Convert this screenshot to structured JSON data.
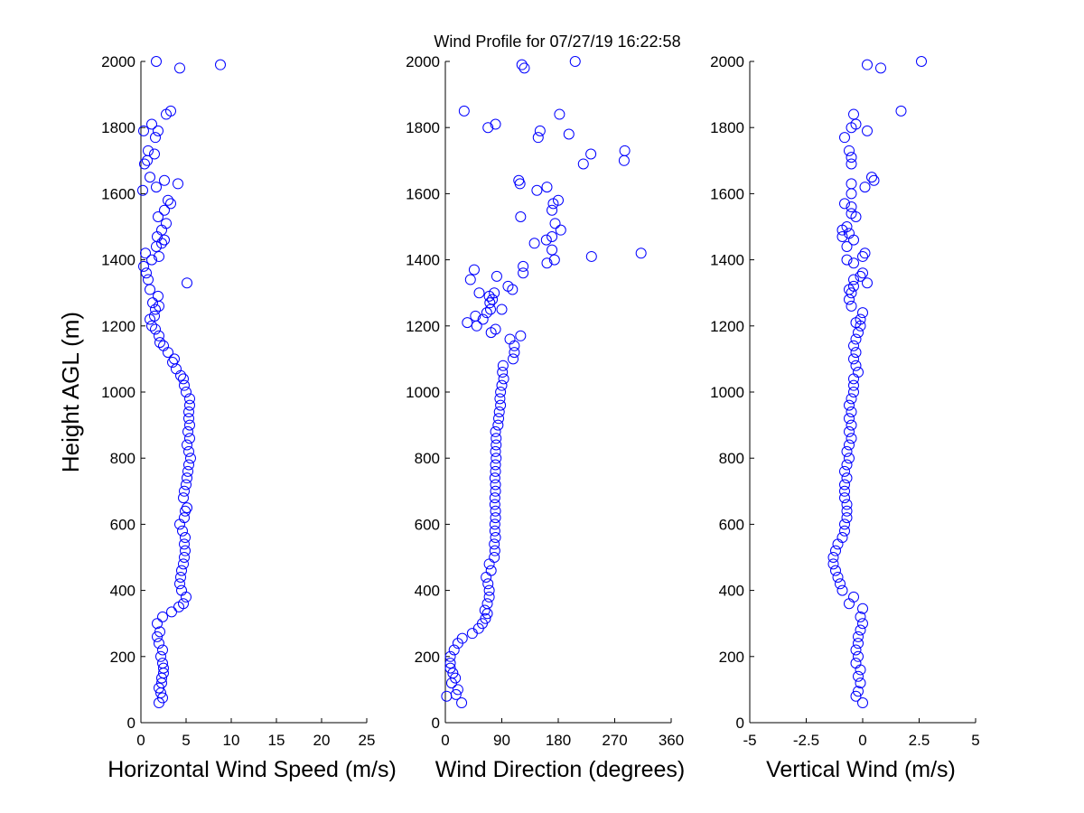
{
  "figure_title": "Wind Profile for  07/27/19 16:22:58",
  "marker_color": "#0000ff",
  "chart_data": [
    {
      "type": "scatter",
      "xlabel": "Horizontal Wind Speed (m/s)",
      "ylabel": "Height AGL (m)",
      "xlim": [
        0,
        25
      ],
      "ylim": [
        0,
        2000
      ],
      "xticks": [
        "0",
        "5",
        "10",
        "15",
        "20",
        "25"
      ],
      "yticks": [
        "0",
        "200",
        "400",
        "600",
        "800",
        "1000",
        "1200",
        "1400",
        "1600",
        "1800",
        "2000"
      ],
      "grid": false,
      "points": [
        [
          2.0,
          60
        ],
        [
          2.4,
          75
        ],
        [
          2.2,
          90
        ],
        [
          2.0,
          105
        ],
        [
          2.3,
          120
        ],
        [
          2.3,
          135
        ],
        [
          2.5,
          150
        ],
        [
          2.5,
          165
        ],
        [
          2.4,
          180
        ],
        [
          2.2,
          200
        ],
        [
          2.4,
          220
        ],
        [
          2.0,
          240
        ],
        [
          1.8,
          260
        ],
        [
          2.1,
          275
        ],
        [
          1.8,
          300
        ],
        [
          2.4,
          320
        ],
        [
          3.4,
          335
        ],
        [
          4.2,
          350
        ],
        [
          4.7,
          360
        ],
        [
          5.0,
          380
        ],
        [
          4.5,
          400
        ],
        [
          4.3,
          420
        ],
        [
          4.4,
          440
        ],
        [
          4.5,
          460
        ],
        [
          4.7,
          480
        ],
        [
          4.8,
          500
        ],
        [
          4.9,
          520
        ],
        [
          4.8,
          540
        ],
        [
          4.9,
          560
        ],
        [
          4.6,
          580
        ],
        [
          4.3,
          600
        ],
        [
          4.8,
          620
        ],
        [
          4.9,
          640
        ],
        [
          5.1,
          650
        ],
        [
          4.7,
          680
        ],
        [
          4.8,
          700
        ],
        [
          5.0,
          720
        ],
        [
          5.1,
          740
        ],
        [
          5.2,
          760
        ],
        [
          5.3,
          780
        ],
        [
          5.5,
          800
        ],
        [
          5.3,
          820
        ],
        [
          5.1,
          840
        ],
        [
          5.4,
          860
        ],
        [
          5.2,
          880
        ],
        [
          5.4,
          900
        ],
        [
          5.3,
          920
        ],
        [
          5.3,
          940
        ],
        [
          5.4,
          960
        ],
        [
          5.4,
          980
        ],
        [
          5.0,
          1000
        ],
        [
          4.8,
          1020
        ],
        [
          4.7,
          1040
        ],
        [
          4.4,
          1050
        ],
        [
          3.9,
          1070
        ],
        [
          3.5,
          1090
        ],
        [
          3.7,
          1100
        ],
        [
          3.0,
          1120
        ],
        [
          2.5,
          1140
        ],
        [
          2.1,
          1150
        ],
        [
          2.0,
          1170
        ],
        [
          1.6,
          1190
        ],
        [
          1.2,
          1200
        ],
        [
          1.0,
          1220
        ],
        [
          1.5,
          1230
        ],
        [
          1.6,
          1250
        ],
        [
          2.0,
          1260
        ],
        [
          1.3,
          1270
        ],
        [
          1.9,
          1290
        ],
        [
          1.0,
          1310
        ],
        [
          5.1,
          1330
        ],
        [
          0.8,
          1340
        ],
        [
          0.6,
          1360
        ],
        [
          0.3,
          1380
        ],
        [
          1.2,
          1400
        ],
        [
          2.0,
          1410
        ],
        [
          0.5,
          1420
        ],
        [
          1.7,
          1440
        ],
        [
          2.3,
          1450
        ],
        [
          2.6,
          1460
        ],
        [
          1.8,
          1470
        ],
        [
          2.3,
          1490
        ],
        [
          2.8,
          1510
        ],
        [
          1.9,
          1530
        ],
        [
          2.6,
          1550
        ],
        [
          3.3,
          1570
        ],
        [
          3.0,
          1580
        ],
        [
          0.2,
          1610
        ],
        [
          1.7,
          1620
        ],
        [
          4.1,
          1630
        ],
        [
          2.6,
          1640
        ],
        [
          1.0,
          1650
        ],
        [
          0.4,
          1690
        ],
        [
          0.7,
          1700
        ],
        [
          1.5,
          1720
        ],
        [
          0.8,
          1730
        ],
        [
          1.6,
          1770
        ],
        [
          0.3,
          1790
        ],
        [
          1.9,
          1790
        ],
        [
          1.2,
          1810
        ],
        [
          2.8,
          1840
        ],
        [
          3.3,
          1850
        ],
        [
          4.3,
          1980
        ],
        [
          1.7,
          2000
        ],
        [
          8.8,
          1990
        ]
      ]
    },
    {
      "type": "scatter",
      "xlabel": "Wind Direction (degrees)",
      "ylabel": "",
      "xlim": [
        0,
        360
      ],
      "ylim": [
        0,
        2000
      ],
      "xticks": [
        "0",
        "90",
        "180",
        "270",
        "360"
      ],
      "yticks": [
        "0",
        "200",
        "400",
        "600",
        "800",
        "1000",
        "1200",
        "1400",
        "1600",
        "1800",
        "2000"
      ],
      "grid": false,
      "points": [
        [
          26,
          60
        ],
        [
          2,
          80
        ],
        [
          17,
          85
        ],
        [
          20,
          100
        ],
        [
          10,
          120
        ],
        [
          16,
          135
        ],
        [
          12,
          150
        ],
        [
          8,
          165
        ],
        [
          8,
          180
        ],
        [
          8,
          200
        ],
        [
          14,
          220
        ],
        [
          20,
          240
        ],
        [
          27,
          255
        ],
        [
          43,
          270
        ],
        [
          53,
          285
        ],
        [
          59,
          300
        ],
        [
          64,
          315
        ],
        [
          67,
          330
        ],
        [
          63,
          340
        ],
        [
          67,
          360
        ],
        [
          70,
          380
        ],
        [
          70,
          400
        ],
        [
          68,
          420
        ],
        [
          65,
          440
        ],
        [
          73,
          460
        ],
        [
          70,
          480
        ],
        [
          78,
          500
        ],
        [
          79,
          520
        ],
        [
          78,
          540
        ],
        [
          80,
          560
        ],
        [
          79,
          580
        ],
        [
          79,
          600
        ],
        [
          80,
          620
        ],
        [
          80,
          640
        ],
        [
          79,
          660
        ],
        [
          79,
          680
        ],
        [
          80,
          700
        ],
        [
          80,
          720
        ],
        [
          79,
          740
        ],
        [
          80,
          760
        ],
        [
          80,
          780
        ],
        [
          81,
          800
        ],
        [
          80,
          820
        ],
        [
          81,
          840
        ],
        [
          81,
          860
        ],
        [
          80,
          880
        ],
        [
          84,
          900
        ],
        [
          85,
          920
        ],
        [
          86,
          940
        ],
        [
          88,
          960
        ],
        [
          87,
          980
        ],
        [
          88,
          1000
        ],
        [
          90,
          1020
        ],
        [
          93,
          1040
        ],
        [
          91,
          1060
        ],
        [
          92,
          1080
        ],
        [
          108,
          1100
        ],
        [
          110,
          1120
        ],
        [
          110,
          1140
        ],
        [
          103,
          1160
        ],
        [
          120,
          1170
        ],
        [
          73,
          1180
        ],
        [
          80,
          1190
        ],
        [
          35,
          1210
        ],
        [
          50,
          1200
        ],
        [
          60,
          1220
        ],
        [
          48,
          1230
        ],
        [
          66,
          1240
        ],
        [
          72,
          1250
        ],
        [
          90,
          1250
        ],
        [
          71,
          1270
        ],
        [
          75,
          1280
        ],
        [
          70,
          1290
        ],
        [
          78,
          1300
        ],
        [
          54,
          1300
        ],
        [
          107,
          1310
        ],
        [
          100,
          1320
        ],
        [
          40,
          1340
        ],
        [
          82,
          1350
        ],
        [
          46,
          1370
        ],
        [
          124,
          1360
        ],
        [
          124,
          1380
        ],
        [
          162,
          1390
        ],
        [
          174,
          1400
        ],
        [
          233,
          1410
        ],
        [
          312,
          1420
        ],
        [
          170,
          1430
        ],
        [
          142,
          1450
        ],
        [
          161,
          1460
        ],
        [
          170,
          1470
        ],
        [
          184,
          1490
        ],
        [
          175,
          1510
        ],
        [
          120,
          1530
        ],
        [
          170,
          1550
        ],
        [
          172,
          1570
        ],
        [
          180,
          1580
        ],
        [
          146,
          1610
        ],
        [
          162,
          1620
        ],
        [
          119,
          1630
        ],
        [
          117,
          1640
        ],
        [
          220,
          1690
        ],
        [
          285,
          1700
        ],
        [
          232,
          1720
        ],
        [
          286,
          1730
        ],
        [
          148,
          1770
        ],
        [
          197,
          1780
        ],
        [
          151,
          1790
        ],
        [
          68,
          1800
        ],
        [
          80,
          1810
        ],
        [
          182,
          1840
        ],
        [
          30,
          1850
        ],
        [
          126,
          1980
        ],
        [
          122,
          1990
        ],
        [
          207,
          2000
        ]
      ]
    },
    {
      "type": "scatter",
      "xlabel": "Vertical Wind (m/s)",
      "ylabel": "",
      "xlim": [
        -5,
        5
      ],
      "ylim": [
        0,
        2000
      ],
      "xticks": [
        "-5",
        "-2.5",
        "0",
        "2.5",
        "5"
      ],
      "yticks": [
        "0",
        "200",
        "400",
        "600",
        "800",
        "1000",
        "1200",
        "1400",
        "1600",
        "1800",
        "2000"
      ],
      "grid": false,
      "points": [
        [
          0.0,
          60
        ],
        [
          -0.3,
          80
        ],
        [
          -0.2,
          95
        ],
        [
          -0.1,
          120
        ],
        [
          -0.2,
          140
        ],
        [
          -0.1,
          160
        ],
        [
          -0.3,
          180
        ],
        [
          -0.2,
          200
        ],
        [
          -0.3,
          220
        ],
        [
          -0.2,
          240
        ],
        [
          -0.2,
          260
        ],
        [
          -0.1,
          280
        ],
        [
          0.0,
          300
        ],
        [
          -0.1,
          320
        ],
        [
          0.0,
          345
        ],
        [
          -0.6,
          360
        ],
        [
          -0.4,
          380
        ],
        [
          -0.9,
          400
        ],
        [
          -1.0,
          420
        ],
        [
          -1.1,
          440
        ],
        [
          -1.2,
          460
        ],
        [
          -1.3,
          480
        ],
        [
          -1.3,
          500
        ],
        [
          -1.2,
          520
        ],
        [
          -1.1,
          540
        ],
        [
          -0.9,
          560
        ],
        [
          -0.8,
          580
        ],
        [
          -0.8,
          600
        ],
        [
          -0.7,
          620
        ],
        [
          -0.7,
          640
        ],
        [
          -0.7,
          660
        ],
        [
          -0.8,
          680
        ],
        [
          -0.8,
          700
        ],
        [
          -0.8,
          720
        ],
        [
          -0.7,
          740
        ],
        [
          -0.8,
          760
        ],
        [
          -0.7,
          780
        ],
        [
          -0.6,
          800
        ],
        [
          -0.7,
          820
        ],
        [
          -0.6,
          840
        ],
        [
          -0.5,
          860
        ],
        [
          -0.6,
          880
        ],
        [
          -0.5,
          900
        ],
        [
          -0.6,
          920
        ],
        [
          -0.5,
          940
        ],
        [
          -0.6,
          960
        ],
        [
          -0.5,
          980
        ],
        [
          -0.4,
          1000
        ],
        [
          -0.4,
          1020
        ],
        [
          -0.4,
          1040
        ],
        [
          -0.2,
          1060
        ],
        [
          -0.3,
          1080
        ],
        [
          -0.4,
          1100
        ],
        [
          -0.3,
          1120
        ],
        [
          -0.4,
          1140
        ],
        [
          -0.3,
          1160
        ],
        [
          -0.2,
          1180
        ],
        [
          -0.1,
          1200
        ],
        [
          -0.3,
          1210
        ],
        [
          -0.1,
          1220
        ],
        [
          0.0,
          1240
        ],
        [
          -0.5,
          1260
        ],
        [
          -0.6,
          1280
        ],
        [
          -0.5,
          1300
        ],
        [
          -0.6,
          1310
        ],
        [
          -0.4,
          1320
        ],
        [
          0.2,
          1330
        ],
        [
          -0.4,
          1340
        ],
        [
          -0.1,
          1350
        ],
        [
          0.0,
          1360
        ],
        [
          -0.4,
          1390
        ],
        [
          -0.7,
          1400
        ],
        [
          0.0,
          1410
        ],
        [
          0.1,
          1420
        ],
        [
          -0.7,
          1440
        ],
        [
          -0.4,
          1460
        ],
        [
          -0.9,
          1470
        ],
        [
          -0.6,
          1480
        ],
        [
          -0.9,
          1490
        ],
        [
          -0.7,
          1500
        ],
        [
          -0.3,
          1530
        ],
        [
          -0.5,
          1540
        ],
        [
          -0.5,
          1560
        ],
        [
          -0.8,
          1570
        ],
        [
          -0.5,
          1600
        ],
        [
          0.1,
          1620
        ],
        [
          -0.5,
          1630
        ],
        [
          0.5,
          1640
        ],
        [
          0.4,
          1650
        ],
        [
          -0.5,
          1690
        ],
        [
          -0.5,
          1710
        ],
        [
          -0.6,
          1730
        ],
        [
          -0.8,
          1770
        ],
        [
          0.2,
          1790
        ],
        [
          -0.5,
          1800
        ],
        [
          -0.3,
          1810
        ],
        [
          -0.4,
          1840
        ],
        [
          1.7,
          1850
        ],
        [
          0.8,
          1980
        ],
        [
          0.2,
          1990
        ],
        [
          2.6,
          2000
        ]
      ]
    }
  ]
}
